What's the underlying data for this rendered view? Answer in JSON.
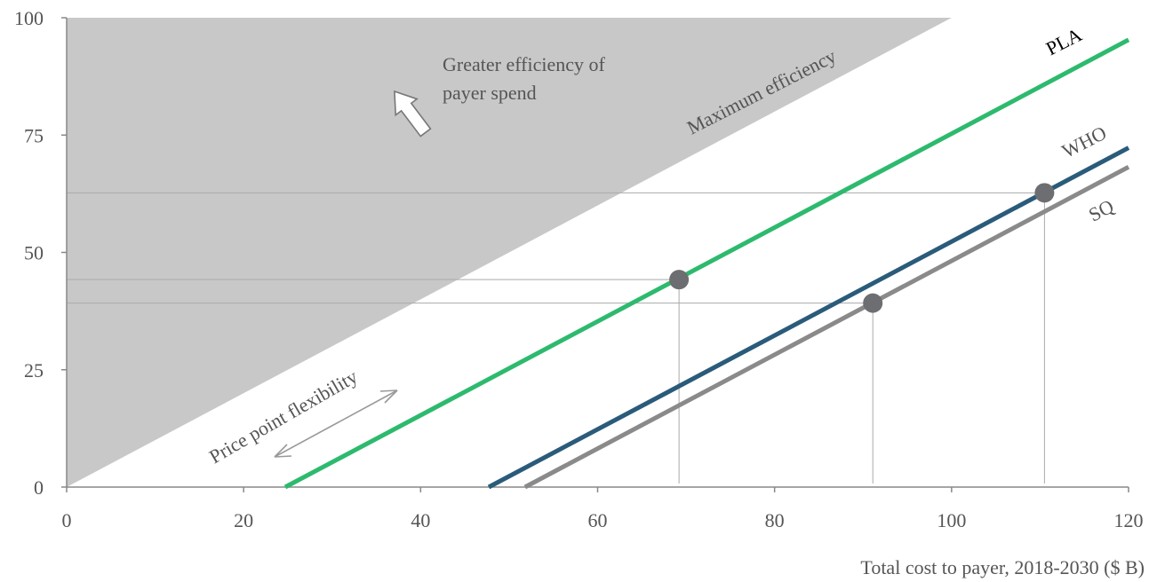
{
  "chart_data": {
    "type": "line",
    "xlabel": "Total cost to payer, 2018-2030 ($ B)",
    "ylabel": "",
    "xlim": [
      0,
      120
    ],
    "ylim": [
      0,
      100
    ],
    "x_ticks": [
      "0",
      "20",
      "40",
      "60",
      "80",
      "100",
      "120"
    ],
    "y_ticks": [
      "0",
      "25",
      "50",
      "75",
      "100"
    ],
    "grid": false,
    "region": {
      "label": "Maximum efficiency",
      "boundary": [
        [
          0,
          0
        ],
        [
          100,
          100
        ]
      ],
      "color": "#c8c8c8"
    },
    "series": [
      {
        "name": "PLA",
        "color": "#2dba6e",
        "x": [
          24.7,
          120
        ],
        "y": [
          0,
          95.3
        ]
      },
      {
        "name": "WHO",
        "color": "#2a5b7a",
        "x": [
          47.7,
          120
        ],
        "y": [
          0,
          72.3
        ]
      },
      {
        "name": "SQ",
        "color": "#8a8a8a",
        "x": [
          51.8,
          120
        ],
        "y": [
          0,
          68.2
        ]
      }
    ],
    "points": [
      {
        "x": 69.2,
        "y": 44.2,
        "color": "#6d6e71"
      },
      {
        "x": 91.1,
        "y": 39.2,
        "color": "#6d6e71"
      },
      {
        "x": 110.5,
        "y": 62.7,
        "color": "#6d6e71"
      }
    ],
    "annotations": {
      "efficiency": "Greater efficiency of payer spend",
      "efficiency_line1": "Greater efficiency of",
      "efficiency_line2": "payer spend",
      "flexibility": "Price point flexibility"
    }
  }
}
